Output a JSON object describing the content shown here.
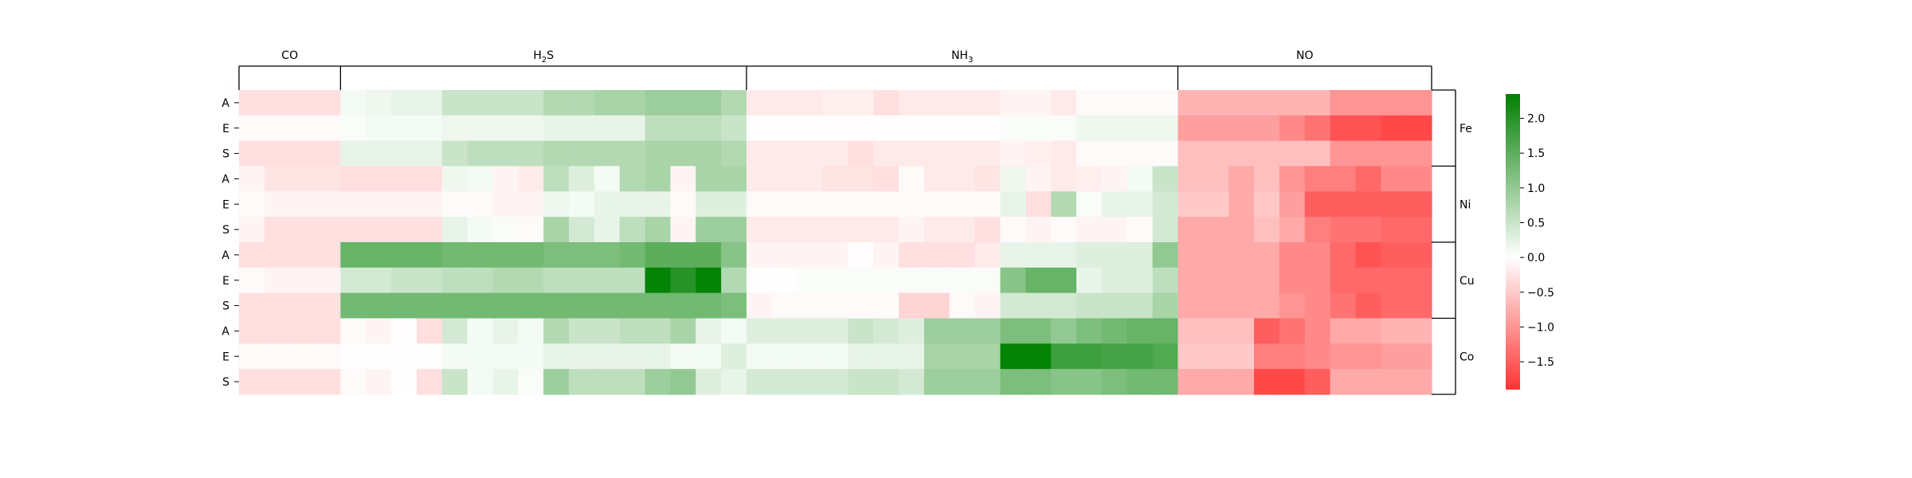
{
  "chart_data": {
    "type": "heatmap",
    "column_groups": [
      {
        "label": "CO",
        "label_main": "CO",
        "label_sub": "",
        "n_cols": 4
      },
      {
        "label": "H2S",
        "label_main": "H",
        "label_sub": "2",
        "label_tail": "S",
        "n_cols": 16
      },
      {
        "label": "NH3",
        "label_main": "NH",
        "label_sub": "3",
        "n_cols": 17
      },
      {
        "label": "NO",
        "label_main": "NO",
        "label_sub": "",
        "n_cols": 10
      }
    ],
    "row_labels": [
      "A",
      "E",
      "S",
      "A",
      "E",
      "S",
      "A",
      "E",
      "S",
      "A",
      "E",
      "S"
    ],
    "row_groups": [
      {
        "label": "Fe",
        "n_rows": 3
      },
      {
        "label": "Ni",
        "n_rows": 3
      },
      {
        "label": "Cu",
        "n_rows": 3
      },
      {
        "label": "Co",
        "n_rows": 3
      }
    ],
    "colorbar": {
      "vmin": -1.9,
      "vmax": 2.35,
      "ticks": [
        2.0,
        1.5,
        1.0,
        0.5,
        0.0,
        -0.5,
        -1.0,
        -1.5
      ],
      "tick_labels": [
        "2.0",
        "1.5",
        "1.0",
        "0.5",
        "0.0",
        "−0.5",
        "−1.0",
        "−1.5"
      ],
      "colors": {
        "negative": "#ff3333",
        "zero": "#ffffff",
        "positive": "#008000"
      }
    },
    "values": [
      [
        -0.3,
        -0.3,
        -0.3,
        -0.3,
        0.1,
        0.15,
        0.2,
        0.2,
        0.5,
        0.5,
        0.5,
        0.5,
        0.7,
        0.7,
        0.8,
        0.8,
        0.9,
        0.9,
        0.9,
        0.7,
        -0.2,
        -0.2,
        -0.2,
        -0.15,
        -0.15,
        -0.3,
        -0.2,
        -0.2,
        -0.2,
        -0.2,
        -0.1,
        -0.1,
        -0.2,
        -0.05,
        -0.05,
        -0.05,
        -0.05,
        -0.7,
        -0.7,
        -0.7,
        -0.7,
        -0.7,
        -0.7,
        -1.0,
        -1.0,
        -1.0,
        -1.0
      ],
      [
        -0.05,
        -0.05,
        -0.05,
        -0.05,
        0.05,
        0.1,
        0.1,
        0.1,
        0.15,
        0.15,
        0.15,
        0.15,
        0.2,
        0.2,
        0.2,
        0.2,
        0.6,
        0.6,
        0.6,
        0.5,
        -0.02,
        -0.02,
        -0.02,
        -0.02,
        -0.02,
        -0.02,
        -0.02,
        -0.02,
        -0.02,
        -0.02,
        0.05,
        0.05,
        0.05,
        0.15,
        0.15,
        0.15,
        0.15,
        -0.9,
        -0.9,
        -0.9,
        -0.9,
        -1.1,
        -1.3,
        -1.6,
        -1.6,
        -1.7,
        -1.7
      ],
      [
        -0.3,
        -0.3,
        -0.3,
        -0.3,
        0.2,
        0.2,
        0.2,
        0.2,
        0.5,
        0.6,
        0.6,
        0.6,
        0.7,
        0.7,
        0.7,
        0.7,
        0.8,
        0.8,
        0.8,
        0.7,
        -0.2,
        -0.2,
        -0.2,
        -0.2,
        -0.3,
        -0.2,
        -0.2,
        -0.2,
        -0.2,
        -0.2,
        -0.1,
        -0.15,
        -0.2,
        -0.05,
        -0.05,
        -0.05,
        -0.05,
        -0.6,
        -0.6,
        -0.6,
        -0.6,
        -0.6,
        -0.6,
        -1.0,
        -1.0,
        -1.0,
        -1.0
      ],
      [
        -0.1,
        -0.25,
        -0.25,
        -0.25,
        -0.3,
        -0.3,
        -0.3,
        -0.3,
        0.15,
        0.1,
        -0.1,
        -0.2,
        0.6,
        0.3,
        0.1,
        0.7,
        0.8,
        -0.1,
        0.8,
        0.8,
        -0.2,
        -0.2,
        -0.2,
        -0.25,
        -0.25,
        -0.3,
        -0.05,
        -0.2,
        -0.2,
        -0.25,
        0.15,
        -0.1,
        -0.2,
        -0.15,
        -0.1,
        0.1,
        0.5,
        -0.6,
        -0.6,
        -0.8,
        -0.6,
        -1.0,
        -1.2,
        -1.2,
        -1.4,
        -1.1,
        -1.1
      ],
      [
        -0.05,
        -0.1,
        -0.1,
        -0.1,
        -0.1,
        -0.1,
        -0.1,
        -0.1,
        -0.05,
        -0.05,
        -0.1,
        -0.1,
        0.15,
        0.1,
        0.2,
        0.2,
        0.2,
        -0.05,
        0.3,
        0.3,
        -0.05,
        -0.05,
        -0.05,
        -0.05,
        -0.05,
        -0.05,
        -0.05,
        -0.05,
        -0.05,
        -0.05,
        0.2,
        -0.3,
        0.7,
        0.05,
        0.2,
        0.2,
        0.4,
        -0.5,
        -0.5,
        -0.8,
        -0.5,
        -0.9,
        -1.5,
        -1.5,
        -1.5,
        -1.5,
        -1.5
      ],
      [
        -0.1,
        -0.3,
        -0.3,
        -0.3,
        -0.3,
        -0.3,
        -0.3,
        -0.3,
        0.2,
        0.1,
        0.05,
        -0.05,
        0.8,
        0.4,
        0.2,
        0.6,
        0.8,
        -0.1,
        0.9,
        0.9,
        -0.2,
        -0.2,
        -0.2,
        -0.2,
        -0.2,
        -0.2,
        -0.1,
        -0.2,
        -0.2,
        -0.3,
        -0.05,
        -0.1,
        -0.05,
        -0.1,
        -0.1,
        -0.05,
        0.4,
        -0.8,
        -0.8,
        -0.8,
        -0.6,
        -0.8,
        -1.2,
        -1.3,
        -1.3,
        -1.4,
        -1.4
      ],
      [
        -0.3,
        -0.3,
        -0.3,
        -0.3,
        1.4,
        1.4,
        1.4,
        1.4,
        1.3,
        1.3,
        1.3,
        1.3,
        1.2,
        1.2,
        1.2,
        1.3,
        1.5,
        1.5,
        1.5,
        1.1,
        -0.1,
        -0.1,
        -0.1,
        -0.1,
        -0.02,
        -0.1,
        -0.3,
        -0.3,
        -0.3,
        -0.2,
        0.2,
        0.2,
        0.2,
        0.3,
        0.3,
        0.3,
        1.0,
        -0.8,
        -0.8,
        -0.8,
        -0.8,
        -1.1,
        -1.1,
        -1.4,
        -1.6,
        -1.5,
        -1.5
      ],
      [
        -0.05,
        -0.1,
        -0.1,
        -0.1,
        0.4,
        0.4,
        0.5,
        0.5,
        0.6,
        0.6,
        0.7,
        0.7,
        0.6,
        0.6,
        0.6,
        0.6,
        2.3,
        2.0,
        2.3,
        0.7,
        0.02,
        0.02,
        0.05,
        0.05,
        0.05,
        0.05,
        0.05,
        0.05,
        0.05,
        0.05,
        1.1,
        1.4,
        1.4,
        0.2,
        0.3,
        0.3,
        0.6,
        -0.8,
        -0.8,
        -0.8,
        -0.8,
        -1.1,
        -1.1,
        -1.4,
        -1.4,
        -1.4,
        -1.4
      ],
      [
        -0.3,
        -0.3,
        -0.3,
        -0.3,
        1.3,
        1.3,
        1.3,
        1.3,
        1.3,
        1.3,
        1.3,
        1.3,
        1.3,
        1.3,
        1.3,
        1.3,
        1.3,
        1.3,
        1.3,
        1.2,
        -0.1,
        -0.05,
        -0.05,
        -0.05,
        -0.05,
        -0.05,
        -0.4,
        -0.4,
        -0.05,
        -0.1,
        0.4,
        0.4,
        0.4,
        0.5,
        0.5,
        0.5,
        0.8,
        -0.8,
        -0.8,
        -0.8,
        -0.8,
        -1.0,
        -1.1,
        -1.3,
        -1.5,
        -1.4,
        -1.4
      ],
      [
        -0.3,
        -0.3,
        -0.3,
        -0.3,
        -0.05,
        -0.1,
        -0.02,
        -0.3,
        0.4,
        0.1,
        0.2,
        0.1,
        0.7,
        0.5,
        0.5,
        0.6,
        0.6,
        0.8,
        0.2,
        0.1,
        0.3,
        0.3,
        0.3,
        0.3,
        0.5,
        0.4,
        0.3,
        0.9,
        0.9,
        0.9,
        1.2,
        1.2,
        1.0,
        1.2,
        1.3,
        1.4,
        1.4,
        -0.6,
        -0.6,
        -0.6,
        -1.5,
        -1.3,
        -1.1,
        -0.8,
        -0.8,
        -0.7,
        -0.7
      ],
      [
        -0.05,
        -0.05,
        -0.05,
        -0.05,
        0.02,
        0.02,
        0.02,
        0.02,
        0.1,
        0.1,
        0.1,
        0.1,
        0.2,
        0.2,
        0.2,
        0.2,
        0.2,
        0.1,
        0.1,
        0.3,
        0.1,
        0.1,
        0.1,
        0.1,
        0.2,
        0.2,
        0.2,
        0.8,
        0.8,
        0.8,
        2.3,
        2.3,
        1.8,
        1.8,
        1.7,
        1.7,
        1.6,
        -0.5,
        -0.5,
        -0.5,
        -1.2,
        -1.2,
        -1.1,
        -1.0,
        -1.0,
        -0.9,
        -0.9
      ],
      [
        -0.3,
        -0.3,
        -0.3,
        -0.3,
        -0.05,
        -0.1,
        -0.02,
        -0.3,
        0.5,
        0.1,
        0.2,
        0.05,
        0.9,
        0.6,
        0.6,
        0.6,
        0.9,
        1.0,
        0.3,
        0.2,
        0.4,
        0.4,
        0.4,
        0.4,
        0.5,
        0.5,
        0.4,
        0.9,
        0.9,
        0.9,
        1.2,
        1.2,
        1.1,
        1.1,
        1.2,
        1.3,
        1.3,
        -0.8,
        -0.8,
        -0.8,
        -1.7,
        -1.7,
        -1.5,
        -0.8,
        -0.8,
        -0.8,
        -0.8
      ]
    ]
  }
}
